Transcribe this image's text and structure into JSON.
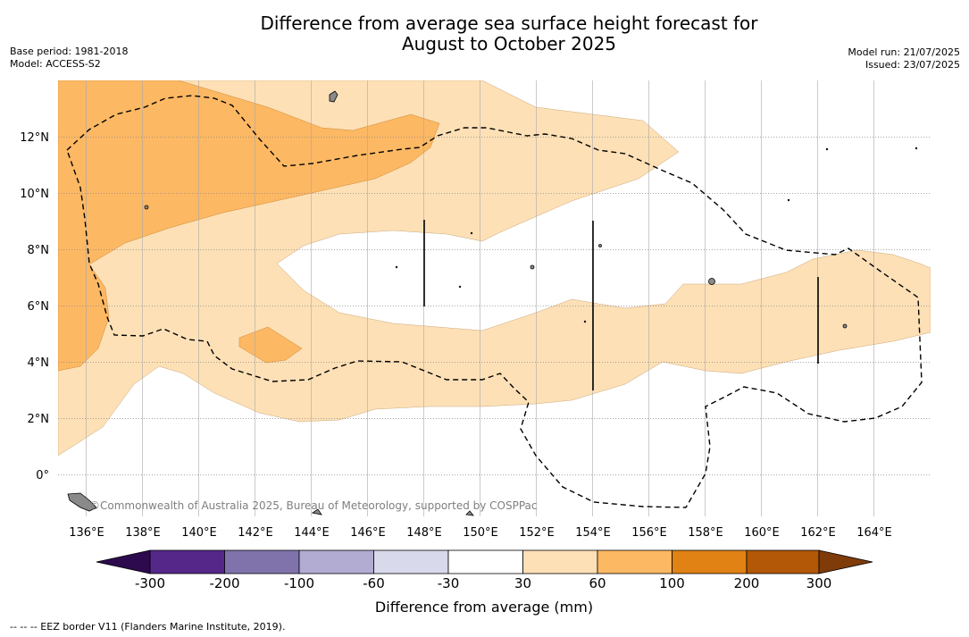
{
  "header": {
    "title_line1": "Difference from average sea surface height forecast for",
    "title_line2": "August to October 2025",
    "base_period": "Base period: 1981-2018",
    "model": "Model: ACCESS-S2",
    "model_run": "Model run: 21/07/2025",
    "issued": "Issued: 23/07/2025"
  },
  "map": {
    "lon_range": [
      135,
      166
    ],
    "lat_range": [
      -1.5,
      14
    ],
    "x_ticks": [
      "136°E",
      "138°E",
      "140°E",
      "142°E",
      "144°E",
      "146°E",
      "148°E",
      "150°E",
      "152°E",
      "154°E",
      "156°E",
      "158°E",
      "160°E",
      "162°E",
      "164°E"
    ],
    "y_ticks": [
      "0°",
      "2°N",
      "4°N",
      "6°N",
      "8°N",
      "10°N",
      "12°N"
    ],
    "credit": "©Commonwealth of Australia 2025, Bureau of Meteorology, supported by COSPPac"
  },
  "colorbar": {
    "label": "Difference from average (mm)",
    "ticks": [
      "-300",
      "-200",
      "-100",
      "-60",
      "-30",
      "30",
      "60",
      "100",
      "200",
      "300"
    ],
    "colors": {
      "below_-300": "#2d0a4e",
      "-300_-200": "#542788",
      "-200_-100": "#8073ac",
      "-100_-60": "#b2abd2",
      "-60_-30": "#d8daeb",
      "-30_30": "#ffffff",
      "30_60": "#fee0b6",
      "60_100": "#fdb863",
      "100_200": "#e08214",
      "200_300": "#b35806",
      "above_300": "#7f3b08"
    }
  },
  "footnote": "--  --  -- EEZ border V11 (Flanders Marine Institute, 2019)."
}
